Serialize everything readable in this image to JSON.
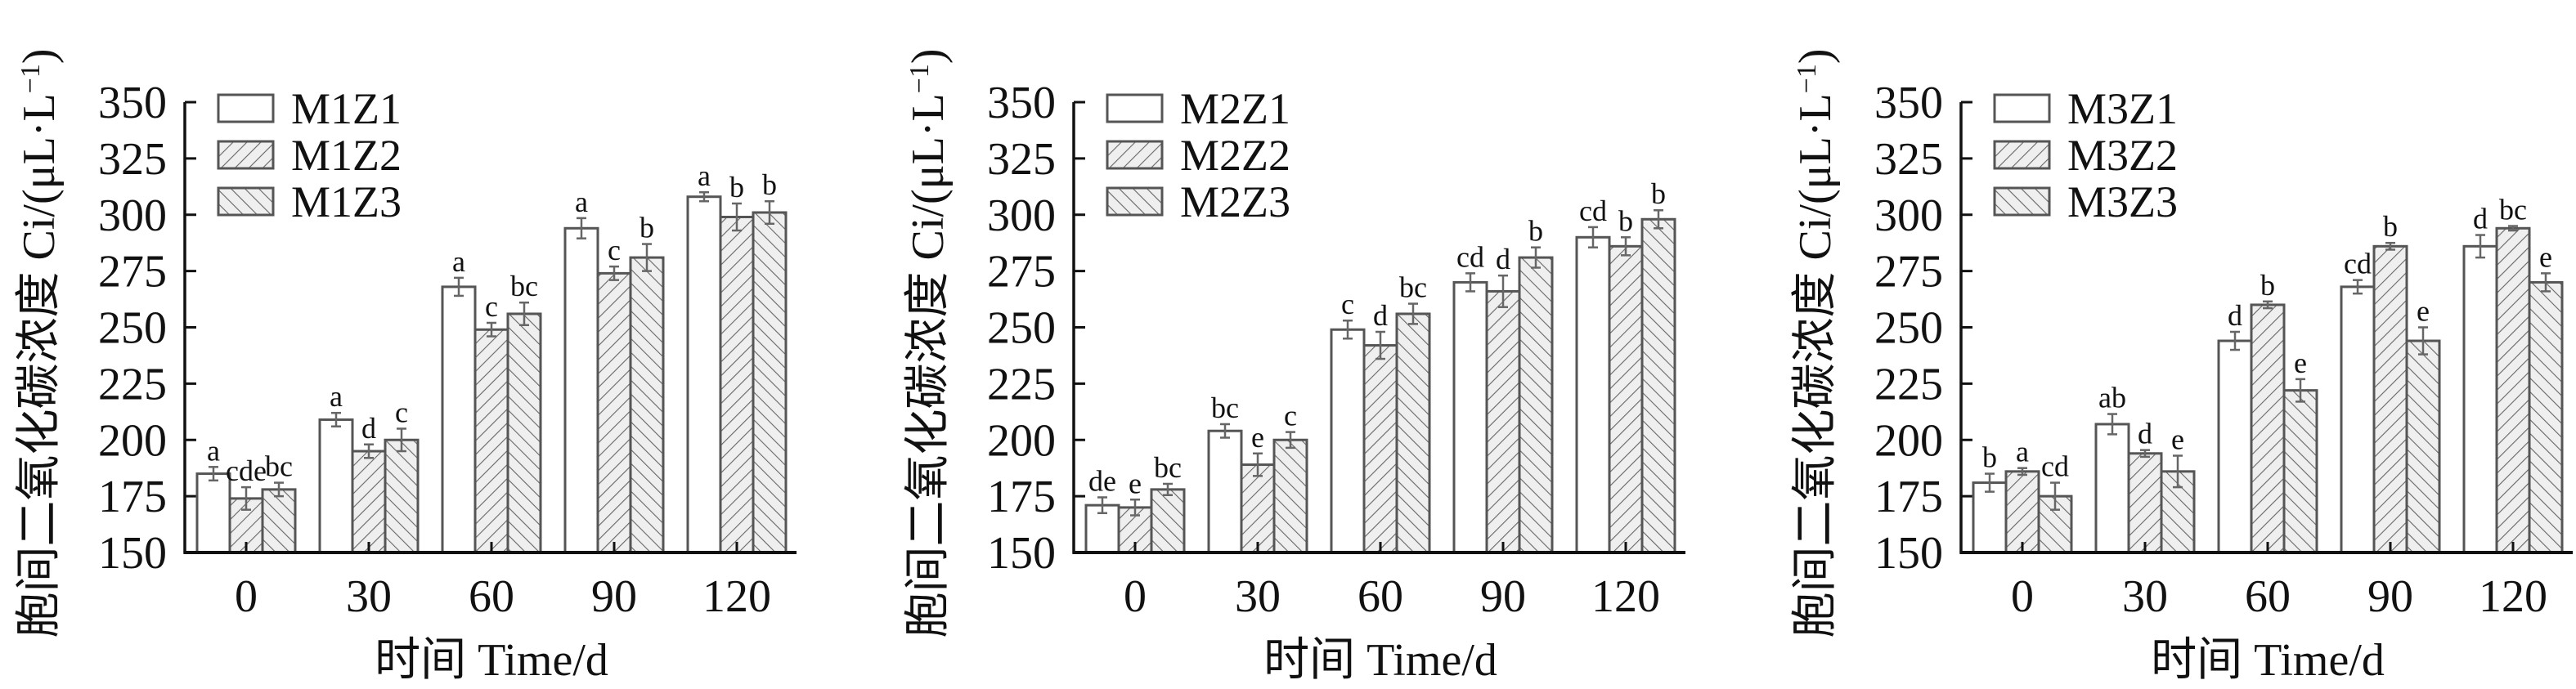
{
  "colors": {
    "axis": "#111111",
    "bar_stroke": "#555555",
    "bar_fill_plain": "#ffffff",
    "bar_fill_hatched": "#efefef",
    "hatch": "#666666",
    "error_bar": "#666666"
  },
  "chart_data": [
    {
      "type": "bar",
      "title": "",
      "xlabel": "时间 Time/d",
      "ylabel": "胞间二氧化碳浓度 Ci/(μL·L⁻¹)",
      "ylabel_main": "胞间二氧化碳浓度 Ci/(μL·L",
      "ylabel_sup": "−1",
      "ylabel_close": ")",
      "categories": [
        "0",
        "30",
        "60",
        "90",
        "120"
      ],
      "ylim": [
        150,
        350
      ],
      "yticks": [
        "150",
        "175",
        "200",
        "225",
        "250",
        "275",
        "300",
        "325",
        "350"
      ],
      "grid": false,
      "legend": "top-left",
      "series": [
        {
          "name": "M1Z1",
          "pattern": "none",
          "values": [
            185,
            209,
            268,
            294,
            308
          ],
          "errors": [
            3,
            3,
            4,
            4.5,
            2
          ],
          "labels": [
            "a",
            "a",
            "a",
            "a",
            "a"
          ]
        },
        {
          "name": "M1Z2",
          "pattern": "forward",
          "values": [
            174,
            195,
            249,
            274,
            299
          ],
          "errors": [
            5,
            3,
            3,
            3,
            6
          ],
          "labels": [
            "cde",
            "d",
            "c",
            "c",
            "b"
          ]
        },
        {
          "name": "M1Z3",
          "pattern": "backward",
          "values": [
            178,
            200,
            256,
            281,
            301
          ],
          "errors": [
            3,
            5,
            5,
            6,
            5
          ],
          "labels": [
            "bc",
            "c",
            "bc",
            "b",
            "b"
          ]
        }
      ]
    },
    {
      "type": "bar",
      "title": "",
      "xlabel": "时间 Time/d",
      "ylabel": "胞间二氧化碳浓度 Ci/(μL·L⁻¹)",
      "ylabel_main": "胞间二氧化碳浓度 Ci/(μL·L",
      "ylabel_sup": "−1",
      "ylabel_close": ")",
      "categories": [
        "0",
        "30",
        "60",
        "90",
        "120"
      ],
      "ylim": [
        150,
        350
      ],
      "yticks": [
        "150",
        "175",
        "200",
        "225",
        "250",
        "275",
        "300",
        "325",
        "350"
      ],
      "grid": false,
      "legend": "top-left",
      "series": [
        {
          "name": "M2Z1",
          "pattern": "none",
          "values": [
            171,
            204,
            249,
            270,
            290
          ],
          "errors": [
            3.5,
            3,
            4,
            4,
            4.5
          ],
          "labels": [
            "de",
            "bc",
            "c",
            "cd",
            "cd"
          ]
        },
        {
          "name": "M2Z2",
          "pattern": "forward",
          "values": [
            170,
            189,
            242,
            266,
            286
          ],
          "errors": [
            3.5,
            5,
            6,
            7,
            4
          ],
          "labels": [
            "e",
            "e",
            "d",
            "d",
            "b"
          ]
        },
        {
          "name": "M2Z3",
          "pattern": "backward",
          "values": [
            178,
            200,
            256,
            281,
            298
          ],
          "errors": [
            2.5,
            3.5,
            4.5,
            4.5,
            4
          ],
          "labels": [
            "bc",
            "c",
            "bc",
            "b",
            "b"
          ]
        }
      ]
    },
    {
      "type": "bar",
      "title": "",
      "xlabel": "时间 Time/d",
      "ylabel": "胞间二氧化碳浓度 Ci/(μL·L⁻¹)",
      "ylabel_main": "胞间二氧化碳浓度 Ci/(μL·L",
      "ylabel_sup": "−1",
      "ylabel_close": ")",
      "categories": [
        "0",
        "30",
        "60",
        "90",
        "120"
      ],
      "ylim": [
        150,
        350
      ],
      "yticks": [
        "150",
        "175",
        "200",
        "225",
        "250",
        "275",
        "300",
        "325",
        "350"
      ],
      "grid": false,
      "legend": "top-left",
      "series": [
        {
          "name": "M3Z1",
          "pattern": "none",
          "values": [
            181,
            207,
            244,
            268,
            286
          ],
          "errors": [
            4,
            4.5,
            4,
            3,
            5
          ],
          "labels": [
            "b",
            "ab",
            "d",
            "cd",
            "d"
          ]
        },
        {
          "name": "M3Z2",
          "pattern": "forward",
          "values": [
            186,
            194,
            260,
            286,
            294
          ],
          "errors": [
            1.5,
            1.5,
            1.5,
            1.5,
            1
          ],
          "labels": [
            "a",
            "d",
            "b",
            "b",
            "bc"
          ]
        },
        {
          "name": "M3Z3",
          "pattern": "backward",
          "values": [
            175,
            186,
            222,
            244,
            270
          ],
          "errors": [
            6,
            7,
            5,
            6,
            4
          ],
          "labels": [
            "cd",
            "e",
            "e",
            "e",
            "e"
          ]
        }
      ]
    }
  ]
}
